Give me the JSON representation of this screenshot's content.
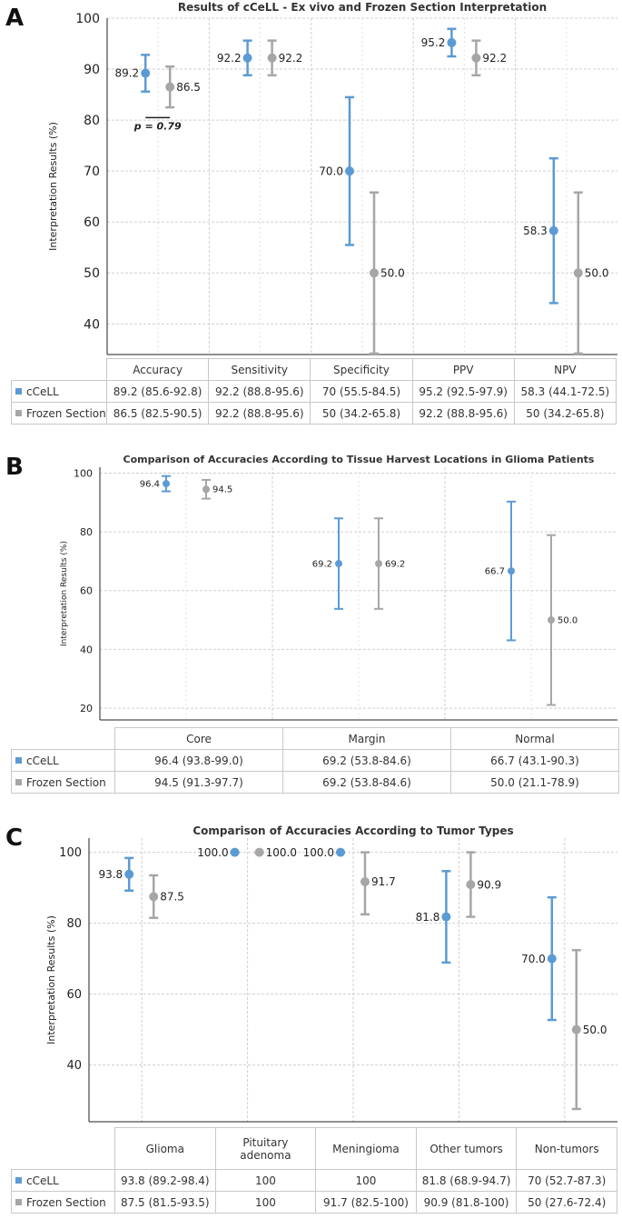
{
  "chart_data": [
    {
      "panel": "A",
      "type": "errorbar",
      "title": "Results of cCeLL - Ex vivo and Frozen Section Interpretation",
      "ylabel": "Interpretation Results (%)",
      "ylim": [
        34,
        100
      ],
      "yticks": [
        40,
        50,
        60,
        70,
        80,
        90,
        100
      ],
      "categories": [
        "Accuracy",
        "Sensitivity",
        "Specificity",
        "PPV",
        "NPV"
      ],
      "series": [
        {
          "name": "cCeLL",
          "color": "#5b9bd5",
          "values": [
            89.2,
            92.2,
            70.0,
            95.2,
            58.3
          ],
          "lower": [
            85.6,
            88.8,
            55.5,
            92.5,
            44.1
          ],
          "upper": [
            92.8,
            95.6,
            84.5,
            97.9,
            72.5
          ],
          "labels": [
            "89.2",
            "92.2",
            "70.0",
            "95.2",
            "58.3"
          ],
          "table": [
            "89.2 (85.6-92.8)",
            "92.2 (88.8-95.6)",
            "70 (55.5-84.5)",
            "95.2 (92.5-97.9)",
            "58.3 (44.1-72.5)"
          ]
        },
        {
          "name": "Frozen Section",
          "color": "#a6a6a6",
          "values": [
            86.5,
            92.2,
            50.0,
            92.2,
            50.0
          ],
          "lower": [
            82.5,
            88.8,
            34.2,
            88.8,
            34.2
          ],
          "upper": [
            90.5,
            95.6,
            65.8,
            95.6,
            65.8
          ],
          "labels": [
            "86.5",
            "92.2",
            "50.0",
            "92.2",
            "50.0"
          ],
          "table": [
            "86.5 (82.5-90.5)",
            "92.2 (88.8-95.6)",
            "50 (34.2-65.8)",
            "92.2 (88.8-95.6)",
            "50 (34.2-65.8)"
          ]
        }
      ],
      "annotation": {
        "text": "p = 0.79",
        "y": 80.5
      }
    },
    {
      "panel": "B",
      "type": "errorbar",
      "title": "Comparison of Accuracies According to Tissue Harvest Locations in Glioma Patients",
      "ylabel": "Interpretation Results (%)",
      "ylim": [
        16,
        102
      ],
      "yticks": [
        20,
        40,
        60,
        80,
        100
      ],
      "categories": [
        "Core",
        "Margin",
        "Normal"
      ],
      "series": [
        {
          "name": "cCeLL",
          "color": "#5b9bd5",
          "values": [
            96.4,
            69.2,
            66.7
          ],
          "lower": [
            93.8,
            53.8,
            43.1
          ],
          "upper": [
            99.0,
            84.6,
            90.3
          ],
          "labels": [
            "96.4",
            "69.2",
            "66.7"
          ],
          "table": [
            "96.4 (93.8-99.0)",
            "69.2 (53.8-84.6)",
            "66.7 (43.1-90.3)"
          ]
        },
        {
          "name": "Frozen Section",
          "color": "#a6a6a6",
          "values": [
            94.5,
            69.2,
            50.0
          ],
          "lower": [
            91.3,
            53.8,
            21.1
          ],
          "upper": [
            97.7,
            84.6,
            78.9
          ],
          "labels": [
            "94.5",
            "69.2",
            "50.0"
          ],
          "table": [
            "94.5 (91.3-97.7)",
            "69.2 (53.8-84.6)",
            "50.0 (21.1-78.9)"
          ]
        }
      ]
    },
    {
      "panel": "C",
      "type": "errorbar",
      "title": "Comparison of Accuracies According to Tumor Types",
      "ylabel": "Interpretation Results (%)",
      "ylim": [
        24,
        104
      ],
      "yticks": [
        40,
        60,
        80,
        100
      ],
      "categories": [
        "Glioma",
        "Pituitary adenoma",
        "Meningioma",
        "Other tumors",
        "Non-tumors"
      ],
      "series": [
        {
          "name": "cCeLL",
          "color": "#5b9bd5",
          "values": [
            93.8,
            100.0,
            100.0,
            81.8,
            70.0
          ],
          "lower": [
            89.2,
            100.0,
            100.0,
            68.9,
            52.7
          ],
          "upper": [
            98.4,
            100.0,
            100.0,
            94.7,
            87.3
          ],
          "labels": [
            "93.8",
            "100.0",
            "100.0",
            "81.8",
            "70.0"
          ],
          "table": [
            "93.8 (89.2-98.4)",
            "100",
            "100",
            "81.8 (68.9-94.7)",
            "70 (52.7-87.3)"
          ]
        },
        {
          "name": "Frozen Section",
          "color": "#a6a6a6",
          "values": [
            87.5,
            100.0,
            91.7,
            90.9,
            50.0
          ],
          "lower": [
            81.5,
            100.0,
            82.5,
            81.8,
            27.6
          ],
          "upper": [
            93.5,
            100.0,
            100.0,
            100.0,
            72.4
          ],
          "labels": [
            "87.5",
            "100.0",
            "91.7",
            "90.9",
            "50.0"
          ],
          "table": [
            "87.5 (81.5-93.5)",
            "100",
            "91.7 (82.5-100)",
            "90.9 (81.8-100)",
            "50 (27.6-72.4)"
          ]
        }
      ]
    }
  ]
}
